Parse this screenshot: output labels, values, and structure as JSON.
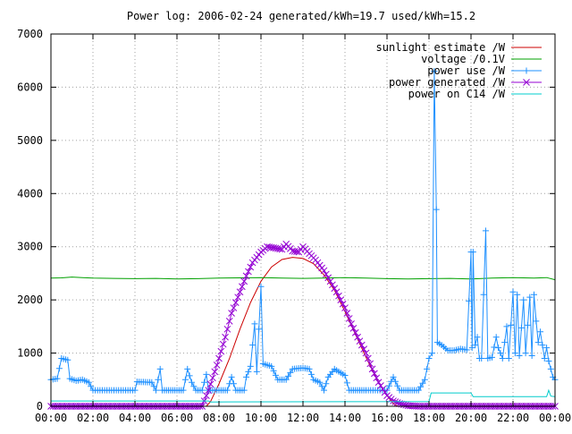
{
  "chart_data": {
    "type": "line",
    "title": "Power log: 2006-02-24 generated/kWh=19.7 used/kWh=15.2",
    "xlabel": "",
    "ylabel": "",
    "xlim": [
      0,
      24
    ],
    "ylim": [
      0,
      7000
    ],
    "grid": true,
    "legend_position": "top-right",
    "x_ticks": [
      "00:00",
      "02:00",
      "04:00",
      "06:00",
      "08:00",
      "10:00",
      "12:00",
      "14:00",
      "16:00",
      "18:00",
      "20:00",
      "22:00",
      "00:00"
    ],
    "y_ticks": [
      "0",
      "1000",
      "2000",
      "3000",
      "4000",
      "5000",
      "6000",
      "7000"
    ],
    "y_tick_values": [
      0,
      1000,
      2000,
      3000,
      4000,
      5000,
      6000,
      7000
    ],
    "series": [
      {
        "name": "sunlight estimate /W",
        "color": "#cc0000",
        "marker": "none",
        "points": [
          [
            0,
            0
          ],
          [
            7.4,
            0
          ],
          [
            7.6,
            90
          ],
          [
            8,
            420
          ],
          [
            8.5,
            900
          ],
          [
            9,
            1450
          ],
          [
            9.5,
            1950
          ],
          [
            10,
            2350
          ],
          [
            10.5,
            2620
          ],
          [
            11,
            2760
          ],
          [
            11.5,
            2800
          ],
          [
            12,
            2780
          ],
          [
            12.5,
            2680
          ],
          [
            13,
            2470
          ],
          [
            13.5,
            2180
          ],
          [
            14,
            1780
          ],
          [
            14.5,
            1350
          ],
          [
            15,
            920
          ],
          [
            15.5,
            520
          ],
          [
            16,
            200
          ],
          [
            16.3,
            50
          ],
          [
            16.5,
            0
          ],
          [
            24,
            0
          ]
        ]
      },
      {
        "name": "voltage /0.1V",
        "color": "#00a000",
        "marker": "none",
        "points": [
          [
            0,
            2410
          ],
          [
            0.5,
            2415
          ],
          [
            1,
            2430
          ],
          [
            1.5,
            2420
          ],
          [
            2,
            2410
          ],
          [
            3,
            2405
          ],
          [
            4,
            2400
          ],
          [
            5,
            2405
          ],
          [
            6,
            2395
          ],
          [
            7,
            2400
          ],
          [
            8,
            2410
          ],
          [
            9,
            2415
          ],
          [
            10,
            2420
          ],
          [
            11,
            2410
          ],
          [
            12,
            2405
          ],
          [
            13,
            2410
          ],
          [
            14,
            2420
          ],
          [
            15,
            2410
          ],
          [
            16,
            2400
          ],
          [
            17,
            2395
          ],
          [
            18,
            2400
          ],
          [
            19,
            2405
          ],
          [
            20,
            2395
          ],
          [
            21,
            2410
          ],
          [
            22,
            2420
          ],
          [
            23,
            2410
          ],
          [
            23.6,
            2420
          ],
          [
            24,
            2380
          ]
        ]
      },
      {
        "name": "power use /W",
        "color": "#1e90ff",
        "marker": "plus",
        "points": [
          [
            0,
            500
          ],
          [
            0.3,
            520
          ],
          [
            0.5,
            900
          ],
          [
            0.8,
            870
          ],
          [
            0.9,
            520
          ],
          [
            1.2,
            480
          ],
          [
            1.5,
            500
          ],
          [
            1.8,
            450
          ],
          [
            2,
            300
          ],
          [
            3,
            300
          ],
          [
            4,
            300
          ],
          [
            4.1,
            460
          ],
          [
            4.8,
            450
          ],
          [
            5,
            300
          ],
          [
            5.2,
            700
          ],
          [
            5.3,
            300
          ],
          [
            6,
            300
          ],
          [
            6.3,
            300
          ],
          [
            6.5,
            700
          ],
          [
            6.7,
            450
          ],
          [
            6.9,
            300
          ],
          [
            7.2,
            300
          ],
          [
            7.4,
            600
          ],
          [
            7.5,
            300
          ],
          [
            8,
            300
          ],
          [
            8.4,
            300
          ],
          [
            8.6,
            550
          ],
          [
            8.8,
            300
          ],
          [
            9.2,
            300
          ],
          [
            9.3,
            550
          ],
          [
            9.5,
            750
          ],
          [
            9.7,
            1550
          ],
          [
            9.8,
            650
          ],
          [
            10,
            2250
          ],
          [
            10.1,
            800
          ],
          [
            10.5,
            750
          ],
          [
            10.8,
            500
          ],
          [
            11,
            500
          ],
          [
            11.2,
            500
          ],
          [
            11.5,
            700
          ],
          [
            12,
            720
          ],
          [
            12.3,
            700
          ],
          [
            12.5,
            500
          ],
          [
            12.8,
            450
          ],
          [
            13,
            300
          ],
          [
            13.2,
            550
          ],
          [
            13.5,
            700
          ],
          [
            14,
            580
          ],
          [
            14.2,
            300
          ],
          [
            15,
            300
          ],
          [
            16,
            300
          ],
          [
            16.3,
            550
          ],
          [
            16.6,
            300
          ],
          [
            17,
            300
          ],
          [
            17.5,
            300
          ],
          [
            17.8,
            500
          ],
          [
            18,
            900
          ],
          [
            18.15,
            1000
          ],
          [
            18.25,
            6300
          ],
          [
            18.35,
            3700
          ],
          [
            18.4,
            1200
          ],
          [
            18.6,
            1150
          ],
          [
            18.9,
            1050
          ],
          [
            19.2,
            1050
          ],
          [
            19.5,
            1080
          ],
          [
            19.8,
            1060
          ],
          [
            20,
            2900
          ],
          [
            20.05,
            1100
          ],
          [
            20.1,
            2900
          ],
          [
            20.2,
            1150
          ],
          [
            20.3,
            1300
          ],
          [
            20.4,
            900
          ],
          [
            20.5,
            900
          ],
          [
            20.7,
            3300
          ],
          [
            20.8,
            900
          ],
          [
            21,
            920
          ],
          [
            21.2,
            1300
          ],
          [
            21.3,
            1100
          ],
          [
            21.5,
            900
          ],
          [
            21.7,
            1500
          ],
          [
            21.8,
            900
          ],
          [
            22,
            2150
          ],
          [
            22.1,
            1000
          ],
          [
            22.2,
            2100
          ],
          [
            22.3,
            950
          ],
          [
            22.5,
            2000
          ],
          [
            22.6,
            1000
          ],
          [
            22.8,
            2050
          ],
          [
            22.9,
            950
          ],
          [
            23,
            2100
          ],
          [
            23.1,
            1600
          ],
          [
            23.2,
            1200
          ],
          [
            23.3,
            1400
          ],
          [
            23.5,
            900
          ],
          [
            23.6,
            1100
          ],
          [
            23.7,
            850
          ],
          [
            23.9,
            550
          ],
          [
            24,
            500
          ]
        ]
      },
      {
        "name": "power generated /W",
        "color": "#9400d3",
        "marker": "cross",
        "points": [
          [
            0,
            0
          ],
          [
            7.2,
            0
          ],
          [
            7.5,
            300
          ],
          [
            7.8,
            650
          ],
          [
            8,
            900
          ],
          [
            8.3,
            1300
          ],
          [
            8.6,
            1750
          ],
          [
            9,
            2150
          ],
          [
            9.3,
            2450
          ],
          [
            9.6,
            2700
          ],
          [
            10,
            2900
          ],
          [
            10.3,
            3000
          ],
          [
            10.6,
            2980
          ],
          [
            11,
            2950
          ],
          [
            11.2,
            3050
          ],
          [
            11.5,
            2920
          ],
          [
            11.8,
            2900
          ],
          [
            12,
            3000
          ],
          [
            12.3,
            2870
          ],
          [
            12.6,
            2750
          ],
          [
            13,
            2550
          ],
          [
            13.3,
            2350
          ],
          [
            13.6,
            2150
          ],
          [
            14,
            1850
          ],
          [
            14.3,
            1550
          ],
          [
            14.6,
            1300
          ],
          [
            15,
            1000
          ],
          [
            15.3,
            700
          ],
          [
            15.6,
            450
          ],
          [
            16,
            200
          ],
          [
            16.3,
            100
          ],
          [
            16.6,
            50
          ],
          [
            17,
            10
          ],
          [
            17.5,
            0
          ],
          [
            24,
            0
          ]
        ]
      },
      {
        "name": "power on C14 /W",
        "color": "#00cccc",
        "marker": "none",
        "points": [
          [
            0,
            100
          ],
          [
            7.5,
            100
          ],
          [
            7.6,
            80
          ],
          [
            18,
            90
          ],
          [
            18.1,
            250
          ],
          [
            20,
            250
          ],
          [
            20.1,
            180
          ],
          [
            23.6,
            180
          ],
          [
            23.7,
            300
          ],
          [
            23.8,
            190
          ],
          [
            24,
            180
          ]
        ]
      }
    ]
  }
}
